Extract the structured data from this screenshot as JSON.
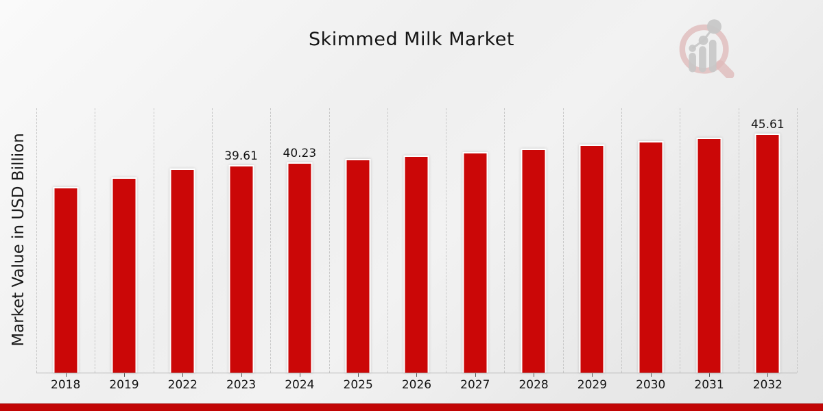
{
  "chart_data": {
    "type": "bar",
    "title": "Skimmed Milk Market",
    "ylabel": "Market Value in USD Billion",
    "xlabel": "",
    "categories": [
      "2018",
      "2019",
      "2022",
      "2023",
      "2024",
      "2025",
      "2026",
      "2027",
      "2028",
      "2029",
      "2030",
      "2031",
      "2032"
    ],
    "values": [
      35.42,
      37.25,
      39.05,
      39.61,
      40.23,
      40.87,
      41.51,
      42.17,
      42.84,
      43.52,
      44.2,
      44.9,
      45.61
    ],
    "data_labels": [
      "",
      "",
      "",
      "39.61",
      "40.23",
      "",
      "",
      "",
      "",
      "",
      "",
      "",
      "45.61"
    ],
    "ylim": [
      0,
      50.5
    ],
    "grid": "vertical-dashed",
    "legend": "none"
  },
  "colors": {
    "bar": "#cb0707",
    "bar_outline": "#ffffff",
    "grid_line": "#c7c7c7",
    "axis_line": "#b3b3b3",
    "text": "#141414",
    "bottom_band": "#c10505",
    "logo_ring": "#e0bcbc",
    "logo_gray": "#c7c7c7"
  },
  "icons": {
    "logo": "mrfr-magnifier-bar-chart-logo"
  }
}
